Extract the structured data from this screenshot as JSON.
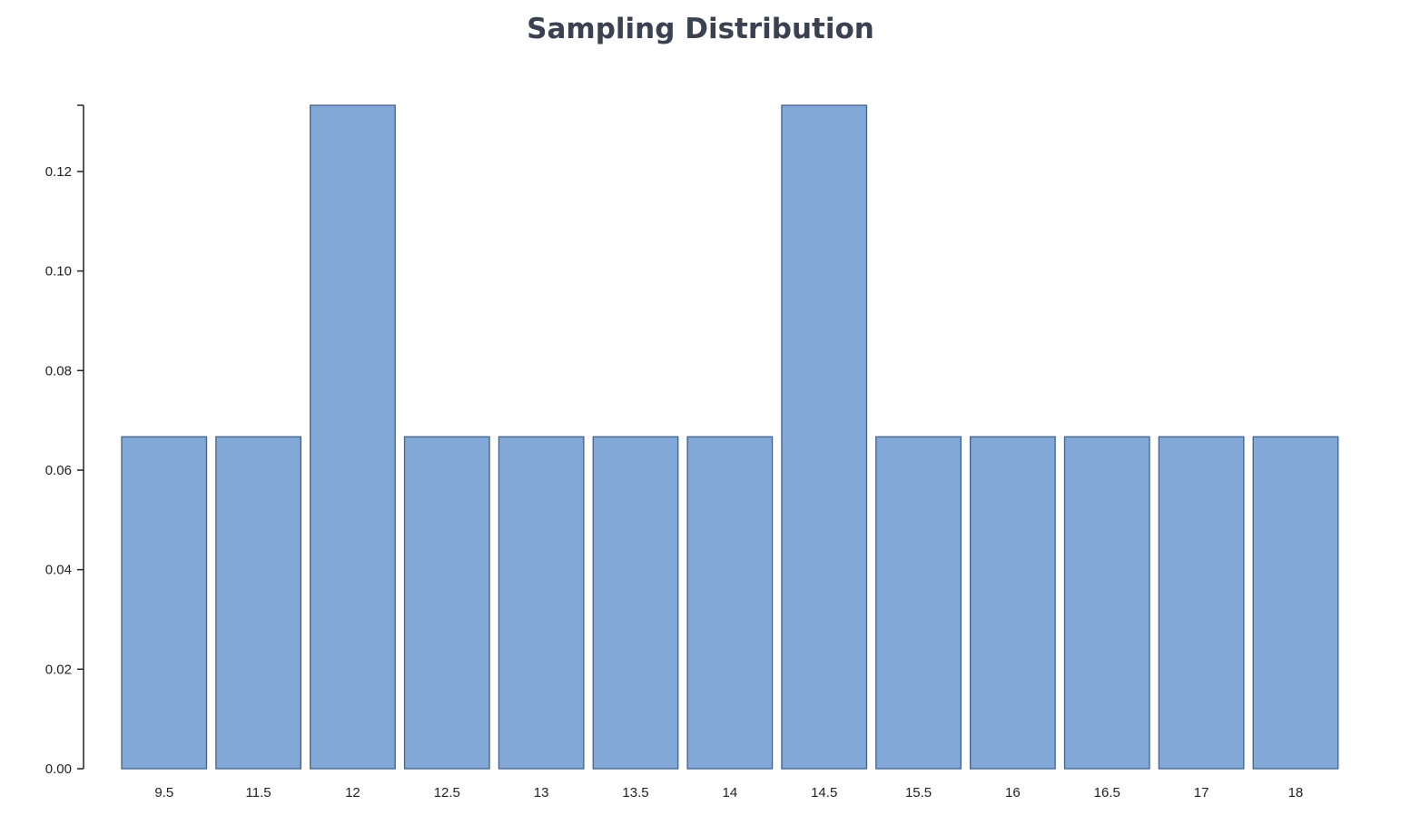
{
  "chart_data": {
    "type": "bar",
    "title": "Sampling Distribution",
    "xlabel": "",
    "ylabel": "",
    "categories": [
      "9.5",
      "11.5",
      "12",
      "12.5",
      "13",
      "13.5",
      "14",
      "14.5",
      "15.5",
      "16",
      "16.5",
      "17",
      "18"
    ],
    "values": [
      0.0667,
      0.0667,
      0.1333,
      0.0667,
      0.0667,
      0.0667,
      0.0667,
      0.1333,
      0.0667,
      0.0667,
      0.0667,
      0.0667,
      0.0667
    ],
    "yticks": [
      "0.00",
      "0.02",
      "0.04",
      "0.06",
      "0.08",
      "0.10",
      "0.12"
    ],
    "ylim": [
      0,
      0.1333
    ],
    "grid": false,
    "bar_color": "#81a8d6",
    "bar_edge_color": "#43618a"
  }
}
